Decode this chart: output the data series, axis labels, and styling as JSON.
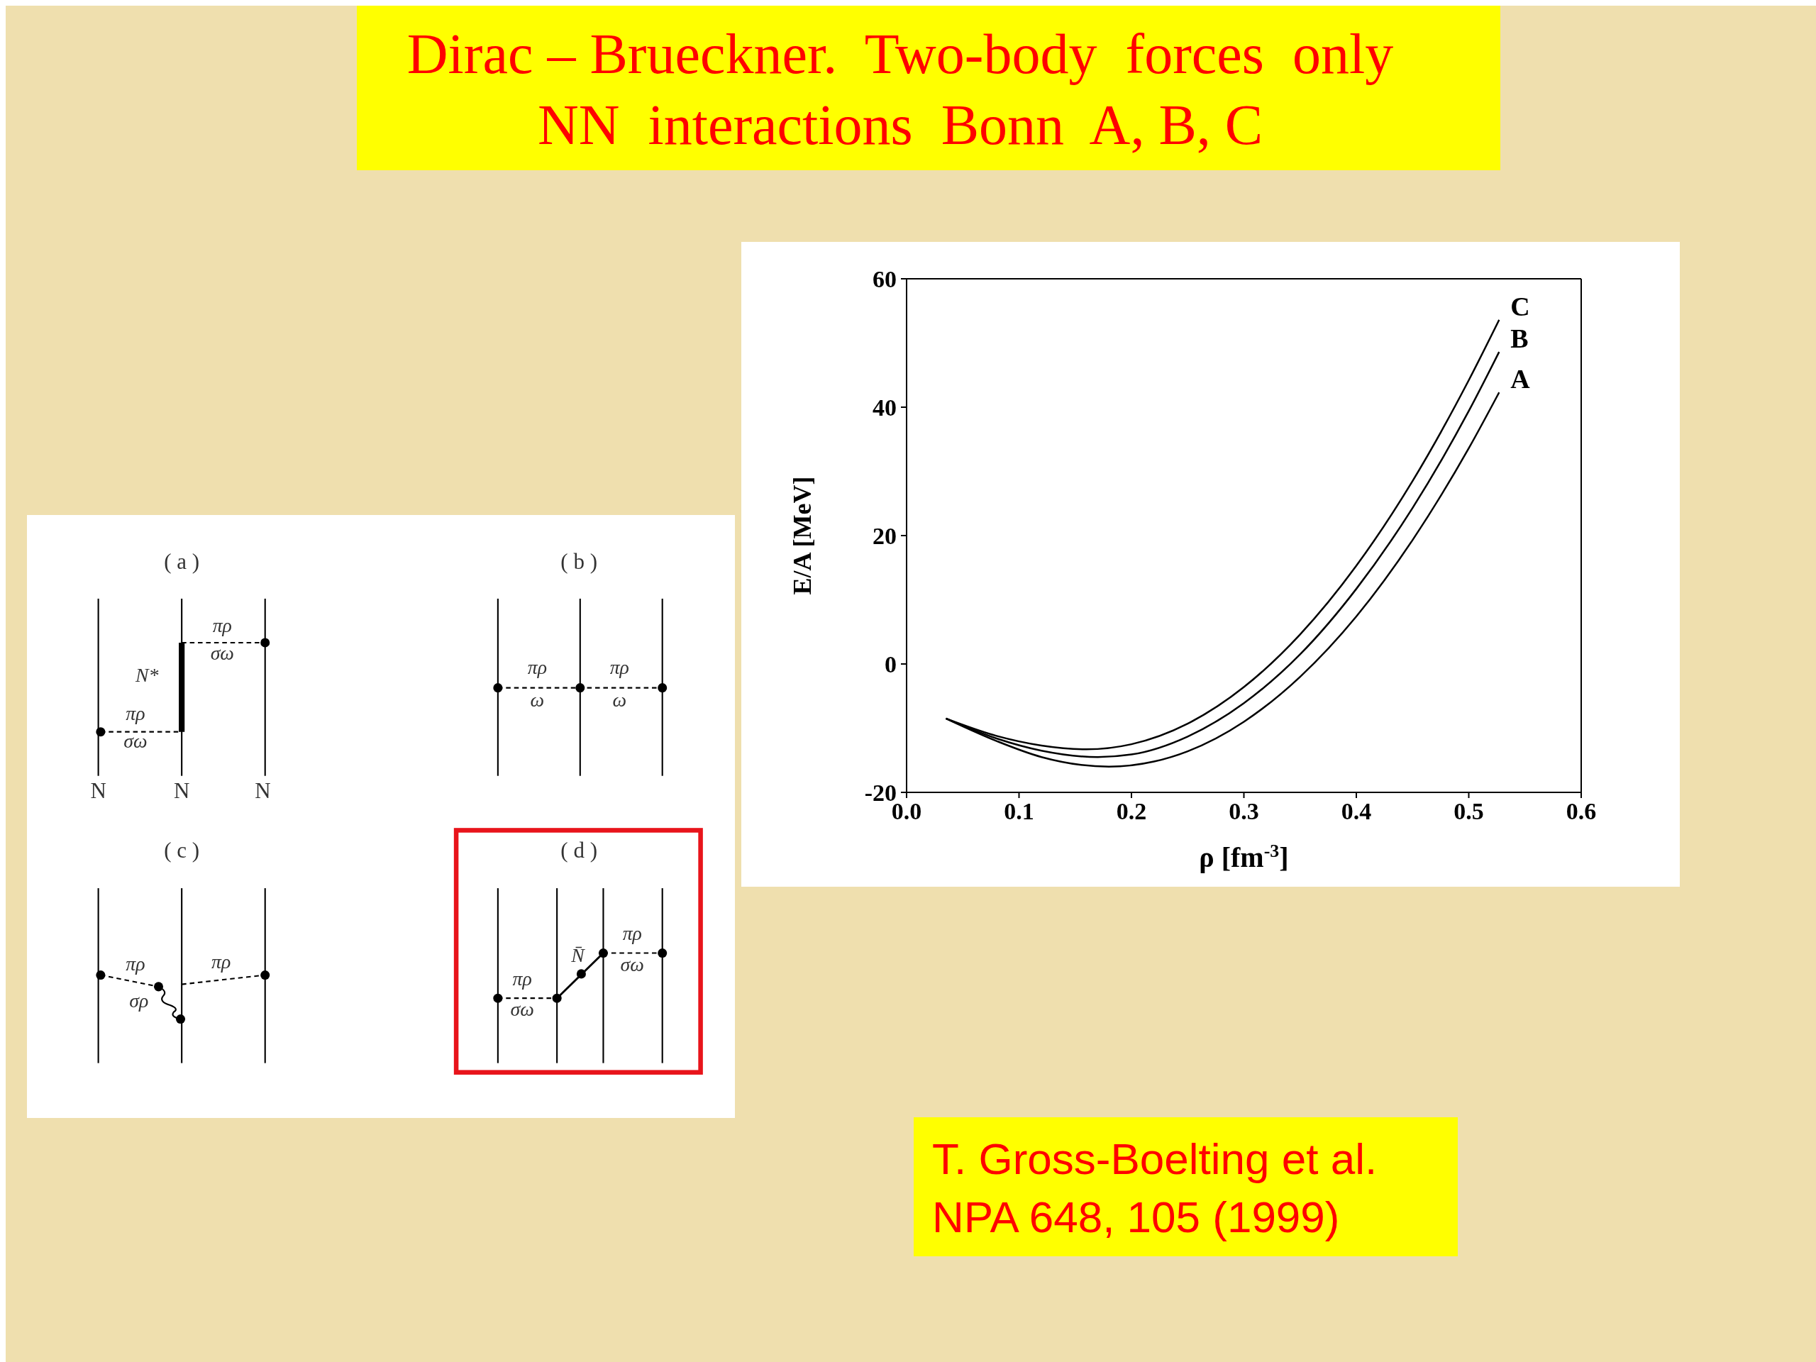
{
  "chart_data": {
    "type": "line",
    "title": "Dirac – Brueckner.  Two-body  forces  only",
    "subtitle": "NN  interactions  Bonn  A, B, C",
    "xlabel": "ρ  [fm$^{-3}$]",
    "ylabel": "E/A [MeV]",
    "xlim": [
      0,
      0.6
    ],
    "ylim": [
      -20,
      60
    ],
    "xticks": [
      {
        "value": 0,
        "label": "0.0"
      },
      0.1,
      0.2,
      0.3,
      0.4,
      0.5,
      0.6
    ],
    "yticks": [
      -20,
      0,
      20,
      40,
      60
    ],
    "marker": "none",
    "line_style": "solid",
    "grid": false,
    "series": [
      {
        "name": "C",
        "color": "#000000",
        "x": [
          0.035,
          0.08,
          0.12,
          0.16,
          0.2,
          0.25,
          0.3,
          0.35,
          0.4,
          0.45,
          0.5,
          0.527
        ],
        "values": [
          -8.5,
          -11.2,
          -12.7,
          -13.3,
          -12.5,
          -9.3,
          -3.6,
          4.6,
          15.3,
          28.5,
          44.2,
          53.6
        ]
      },
      {
        "name": "B",
        "color": "#000000",
        "x": [
          0.035,
          0.08,
          0.12,
          0.17,
          0.2,
          0.25,
          0.3,
          0.35,
          0.4,
          0.45,
          0.5,
          0.527
        ],
        "values": [
          -8.5,
          -11.6,
          -13.5,
          -14.5,
          -14.1,
          -11.3,
          -6.1,
          1.5,
          11.7,
          24.3,
          39.4,
          48.6
        ]
      },
      {
        "name": "A",
        "color": "#000000",
        "x": [
          0.035,
          0.08,
          0.12,
          0.18,
          0.22,
          0.25,
          0.3,
          0.35,
          0.4,
          0.45,
          0.5,
          0.527
        ],
        "values": [
          -8.5,
          -12,
          -14.5,
          -16,
          -15.2,
          -13.6,
          -9,
          -2,
          7.4,
          19.3,
          33.6,
          42.3
        ]
      }
    ],
    "annotations": [
      "T. Gross-Boelting et al.",
      "NPA 648, 105 (1999)",
      "( a )",
      "πρ",
      "σω",
      "N*",
      "πρ",
      "σω",
      "N",
      "N",
      "N",
      "( b )",
      "πρ",
      "ω",
      "πρ",
      "ω",
      "( c )",
      "πρ",
      "σρ",
      "πρ",
      "( d )",
      "πρ",
      "σω",
      "N̄",
      "πρ",
      "σω"
    ]
  }
}
